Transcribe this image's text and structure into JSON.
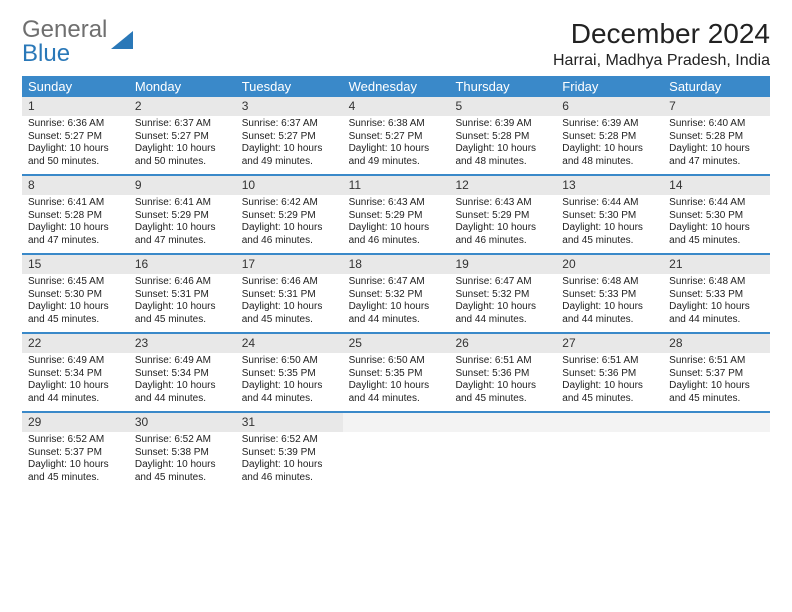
{
  "brand": {
    "first": "General",
    "second": "Blue"
  },
  "title": "December 2024",
  "location": "Harrai, Madhya Pradesh, India",
  "colors": {
    "header_bg": "#3a89c9",
    "header_text": "#ffffff",
    "daynum_bg": "#e8e8e8",
    "row_divider": "#3a89c9",
    "text": "#222222",
    "logo_gray": "#6f6f6f",
    "logo_blue": "#2a78b8",
    "page_bg": "#ffffff"
  },
  "typography": {
    "title_fontsize": 28,
    "location_fontsize": 16,
    "weekday_fontsize": 13,
    "daynum_fontsize": 12,
    "cell_fontsize": 10,
    "font_family": "Arial"
  },
  "weekdays": [
    "Sunday",
    "Monday",
    "Tuesday",
    "Wednesday",
    "Thursday",
    "Friday",
    "Saturday"
  ],
  "days": [
    {
      "n": 1,
      "sunrise": "6:36 AM",
      "sunset": "5:27 PM",
      "daylight": "10 hours and 50 minutes."
    },
    {
      "n": 2,
      "sunrise": "6:37 AM",
      "sunset": "5:27 PM",
      "daylight": "10 hours and 50 minutes."
    },
    {
      "n": 3,
      "sunrise": "6:37 AM",
      "sunset": "5:27 PM",
      "daylight": "10 hours and 49 minutes."
    },
    {
      "n": 4,
      "sunrise": "6:38 AM",
      "sunset": "5:27 PM",
      "daylight": "10 hours and 49 minutes."
    },
    {
      "n": 5,
      "sunrise": "6:39 AM",
      "sunset": "5:28 PM",
      "daylight": "10 hours and 48 minutes."
    },
    {
      "n": 6,
      "sunrise": "6:39 AM",
      "sunset": "5:28 PM",
      "daylight": "10 hours and 48 minutes."
    },
    {
      "n": 7,
      "sunrise": "6:40 AM",
      "sunset": "5:28 PM",
      "daylight": "10 hours and 47 minutes."
    },
    {
      "n": 8,
      "sunrise": "6:41 AM",
      "sunset": "5:28 PM",
      "daylight": "10 hours and 47 minutes."
    },
    {
      "n": 9,
      "sunrise": "6:41 AM",
      "sunset": "5:29 PM",
      "daylight": "10 hours and 47 minutes."
    },
    {
      "n": 10,
      "sunrise": "6:42 AM",
      "sunset": "5:29 PM",
      "daylight": "10 hours and 46 minutes."
    },
    {
      "n": 11,
      "sunrise": "6:43 AM",
      "sunset": "5:29 PM",
      "daylight": "10 hours and 46 minutes."
    },
    {
      "n": 12,
      "sunrise": "6:43 AM",
      "sunset": "5:29 PM",
      "daylight": "10 hours and 46 minutes."
    },
    {
      "n": 13,
      "sunrise": "6:44 AM",
      "sunset": "5:30 PM",
      "daylight": "10 hours and 45 minutes."
    },
    {
      "n": 14,
      "sunrise": "6:44 AM",
      "sunset": "5:30 PM",
      "daylight": "10 hours and 45 minutes."
    },
    {
      "n": 15,
      "sunrise": "6:45 AM",
      "sunset": "5:30 PM",
      "daylight": "10 hours and 45 minutes."
    },
    {
      "n": 16,
      "sunrise": "6:46 AM",
      "sunset": "5:31 PM",
      "daylight": "10 hours and 45 minutes."
    },
    {
      "n": 17,
      "sunrise": "6:46 AM",
      "sunset": "5:31 PM",
      "daylight": "10 hours and 45 minutes."
    },
    {
      "n": 18,
      "sunrise": "6:47 AM",
      "sunset": "5:32 PM",
      "daylight": "10 hours and 44 minutes."
    },
    {
      "n": 19,
      "sunrise": "6:47 AM",
      "sunset": "5:32 PM",
      "daylight": "10 hours and 44 minutes."
    },
    {
      "n": 20,
      "sunrise": "6:48 AM",
      "sunset": "5:33 PM",
      "daylight": "10 hours and 44 minutes."
    },
    {
      "n": 21,
      "sunrise": "6:48 AM",
      "sunset": "5:33 PM",
      "daylight": "10 hours and 44 minutes."
    },
    {
      "n": 22,
      "sunrise": "6:49 AM",
      "sunset": "5:34 PM",
      "daylight": "10 hours and 44 minutes."
    },
    {
      "n": 23,
      "sunrise": "6:49 AM",
      "sunset": "5:34 PM",
      "daylight": "10 hours and 44 minutes."
    },
    {
      "n": 24,
      "sunrise": "6:50 AM",
      "sunset": "5:35 PM",
      "daylight": "10 hours and 44 minutes."
    },
    {
      "n": 25,
      "sunrise": "6:50 AM",
      "sunset": "5:35 PM",
      "daylight": "10 hours and 44 minutes."
    },
    {
      "n": 26,
      "sunrise": "6:51 AM",
      "sunset": "5:36 PM",
      "daylight": "10 hours and 45 minutes."
    },
    {
      "n": 27,
      "sunrise": "6:51 AM",
      "sunset": "5:36 PM",
      "daylight": "10 hours and 45 minutes."
    },
    {
      "n": 28,
      "sunrise": "6:51 AM",
      "sunset": "5:37 PM",
      "daylight": "10 hours and 45 minutes."
    },
    {
      "n": 29,
      "sunrise": "6:52 AM",
      "sunset": "5:37 PM",
      "daylight": "10 hours and 45 minutes."
    },
    {
      "n": 30,
      "sunrise": "6:52 AM",
      "sunset": "5:38 PM",
      "daylight": "10 hours and 45 minutes."
    },
    {
      "n": 31,
      "sunrise": "6:52 AM",
      "sunset": "5:39 PM",
      "daylight": "10 hours and 46 minutes."
    }
  ],
  "labels": {
    "sunrise_prefix": "Sunrise: ",
    "sunset_prefix": "Sunset: ",
    "daylight_prefix": "Daylight: "
  },
  "calendar_layout": {
    "columns": 7,
    "rows": 5,
    "first_day_column": 0,
    "trailing_empty_cells": 4
  }
}
